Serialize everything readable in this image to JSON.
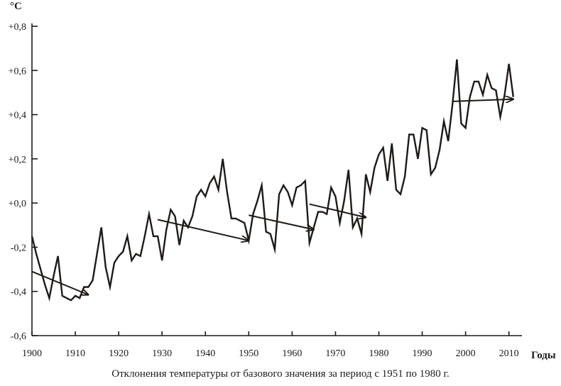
{
  "chart_data": {
    "type": "line",
    "title": "",
    "caption": "Отклонения температуры от базового значения за период с 1951 по 1980 г.",
    "xlabel": "Годы",
    "ylabel": "°C",
    "xlim": [
      1900,
      2013
    ],
    "ylim": [
      -0.6,
      0.8
    ],
    "x_ticks": [
      1900,
      1910,
      1920,
      1930,
      1940,
      1950,
      1960,
      1970,
      1980,
      1990,
      2000,
      2010
    ],
    "y_ticks": [
      {
        "value": 0.8,
        "label": "+0,8"
      },
      {
        "value": 0.6,
        "label": "+0,6"
      },
      {
        "value": 0.4,
        "label": "+0,4"
      },
      {
        "value": 0.2,
        "label": "+0,2"
      },
      {
        "value": 0.0,
        "label": "+0,0"
      },
      {
        "value": -0.2,
        "label": "-0,2"
      },
      {
        "value": -0.4,
        "label": "-0,4"
      },
      {
        "value": -0.6,
        "label": "-0,6"
      }
    ],
    "grid": false,
    "colors": {
      "line": "#1f1a17",
      "axis": "#1f1a17"
    },
    "series": [
      {
        "name": "temperature-anomaly",
        "x": [
          1900,
          1901,
          1902,
          1903,
          1904,
          1905,
          1906,
          1907,
          1908,
          1909,
          1910,
          1911,
          1912,
          1913,
          1914,
          1915,
          1916,
          1917,
          1918,
          1919,
          1920,
          1921,
          1922,
          1923,
          1924,
          1925,
          1926,
          1927,
          1928,
          1929,
          1930,
          1931,
          1932,
          1933,
          1934,
          1935,
          1936,
          1937,
          1938,
          1939,
          1940,
          1941,
          1942,
          1943,
          1944,
          1945,
          1946,
          1947,
          1948,
          1949,
          1950,
          1951,
          1952,
          1953,
          1954,
          1955,
          1956,
          1957,
          1958,
          1959,
          1960,
          1961,
          1962,
          1963,
          1964,
          1965,
          1966,
          1967,
          1968,
          1969,
          1970,
          1971,
          1972,
          1973,
          1974,
          1975,
          1976,
          1977,
          1978,
          1979,
          1980,
          1981,
          1982,
          1983,
          1984,
          1985,
          1986,
          1987,
          1988,
          1989,
          1990,
          1991,
          1992,
          1993,
          1994,
          1995,
          1996,
          1997,
          1998,
          1999,
          2000,
          2001,
          2002,
          2003,
          2004,
          2005,
          2006,
          2007,
          2008,
          2009,
          2010,
          2011
        ],
        "values": [
          -0.15,
          -0.23,
          -0.3,
          -0.37,
          -0.43,
          -0.33,
          -0.24,
          -0.42,
          -0.43,
          -0.44,
          -0.42,
          -0.43,
          -0.38,
          -0.38,
          -0.35,
          -0.23,
          -0.11,
          -0.29,
          -0.38,
          -0.27,
          -0.24,
          -0.22,
          -0.15,
          -0.26,
          -0.23,
          -0.24,
          -0.15,
          -0.05,
          -0.15,
          -0.15,
          -0.26,
          -0.12,
          -0.03,
          -0.06,
          -0.19,
          -0.08,
          -0.11,
          -0.06,
          0.03,
          0.06,
          0.03,
          0.09,
          0.12,
          0.06,
          0.2,
          0.05,
          -0.07,
          -0.07,
          -0.08,
          -0.09,
          -0.17,
          -0.05,
          0.01,
          0.08,
          -0.13,
          -0.14,
          -0.21,
          0.04,
          0.08,
          0.05,
          -0.01,
          0.07,
          0.08,
          0.1,
          -0.18,
          -0.11,
          -0.04,
          -0.04,
          -0.05,
          0.07,
          0.03,
          -0.09,
          0.01,
          0.15,
          -0.11,
          -0.07,
          -0.14,
          0.13,
          0.05,
          0.16,
          0.22,
          0.25,
          0.1,
          0.27,
          0.06,
          0.04,
          0.12,
          0.31,
          0.31,
          0.2,
          0.34,
          0.33,
          0.13,
          0.16,
          0.24,
          0.37,
          0.28,
          0.45,
          0.65,
          0.36,
          0.34,
          0.48,
          0.55,
          0.55,
          0.49,
          0.58,
          0.52,
          0.51,
          0.39,
          0.49,
          0.63,
          0.48
        ]
      }
    ],
    "trend_arrows": [
      {
        "from": [
          1900,
          -0.31
        ],
        "to": [
          1913,
          -0.415
        ]
      },
      {
        "from": [
          1929,
          -0.075
        ],
        "to": [
          1950,
          -0.17
        ]
      },
      {
        "from": [
          1950,
          -0.055
        ],
        "to": [
          1965,
          -0.12
        ]
      },
      {
        "from": [
          1964,
          -0.005
        ],
        "to": [
          1977,
          -0.065
        ]
      },
      {
        "from": [
          1997,
          0.46
        ],
        "to": [
          2011,
          0.47
        ]
      }
    ]
  }
}
